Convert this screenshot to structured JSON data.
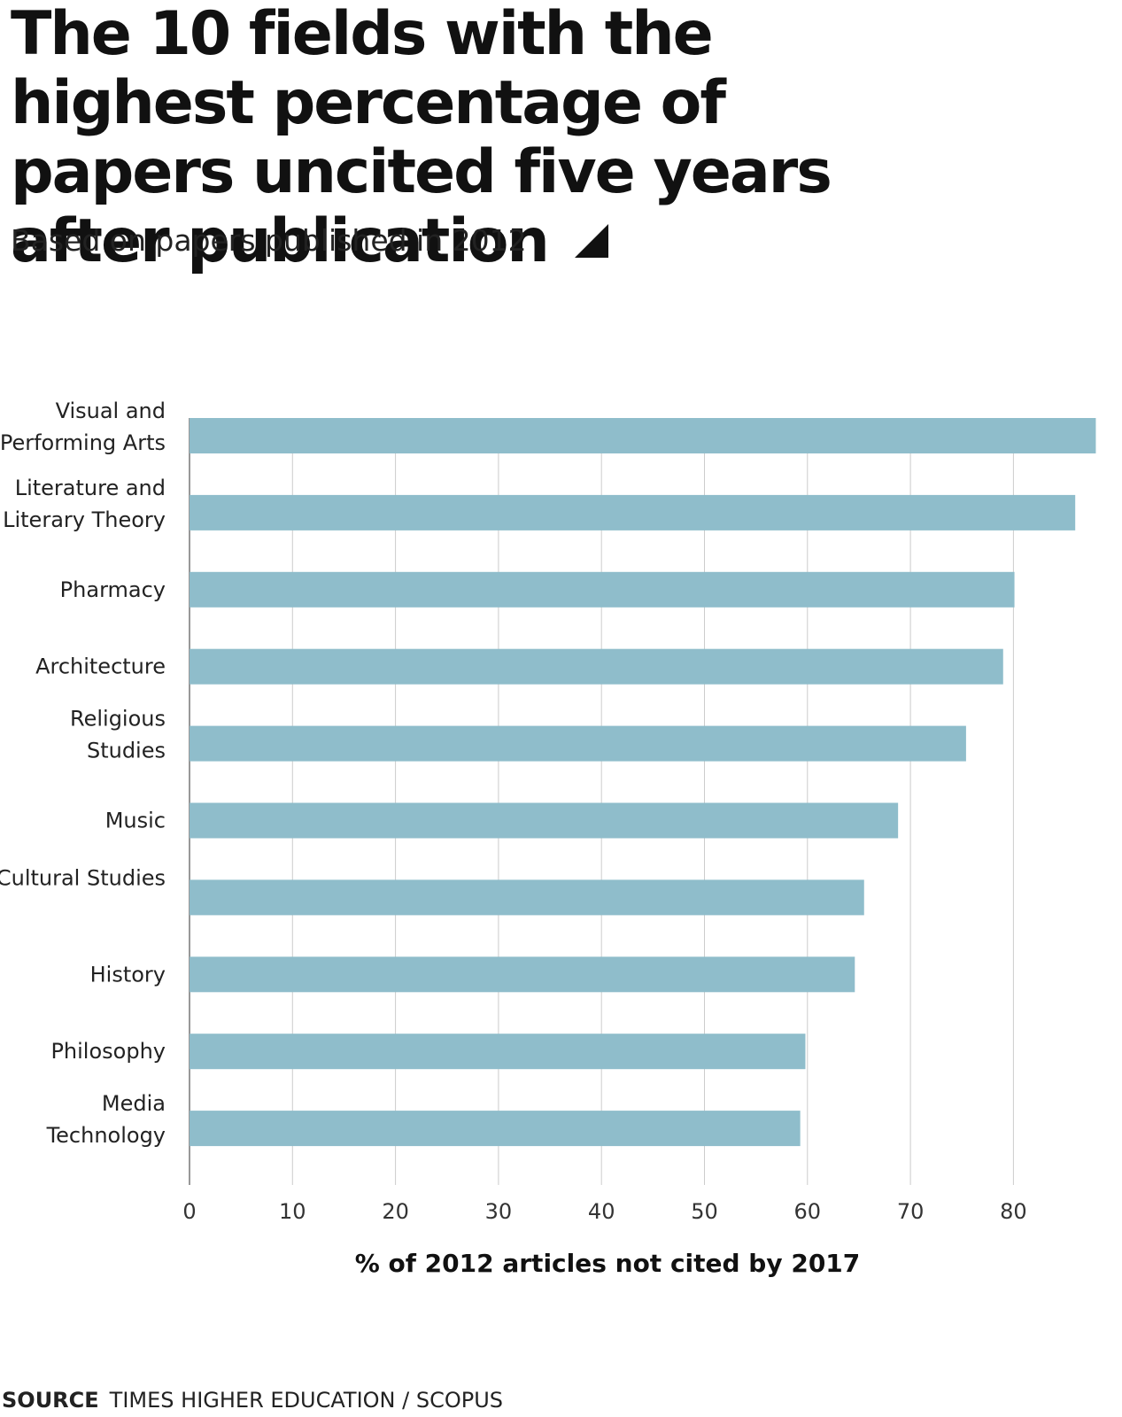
{
  "title": "The 10 fields with the highest percentage of papers uncited five years after publication",
  "subtitle": "Based on papers published in 2012",
  "source": {
    "label": "SOURCE",
    "text": "TIMES HIGHER EDUCATION / SCOPUS"
  },
  "colors": {
    "bar": "#8fbdcb",
    "grid": "#cccccc",
    "axis": "#777777"
  },
  "chart_data": {
    "type": "bar",
    "orientation": "horizontal",
    "categories": [
      [
        "Visual and",
        "Performing Arts"
      ],
      [
        "Literature and",
        "Literary Theory"
      ],
      [
        "Pharmacy"
      ],
      [
        "Architecture"
      ],
      [
        "Religious",
        "Studies"
      ],
      [
        "Music"
      ],
      [
        "Cultural Studies"
      ],
      [
        "History"
      ],
      [
        "Philosophy"
      ],
      [
        "Media",
        "Technology"
      ]
    ],
    "values": [
      88,
      86,
      80.1,
      79,
      75.4,
      68.8,
      65.5,
      64.6,
      59.8,
      59.3
    ],
    "xlabel": "% of 2012 articles not cited by 2017",
    "ylabel": "",
    "xlim": [
      0,
      88
    ],
    "xticks": [
      0,
      10,
      20,
      30,
      40,
      50,
      60,
      70,
      80
    ],
    "grid": true
  }
}
